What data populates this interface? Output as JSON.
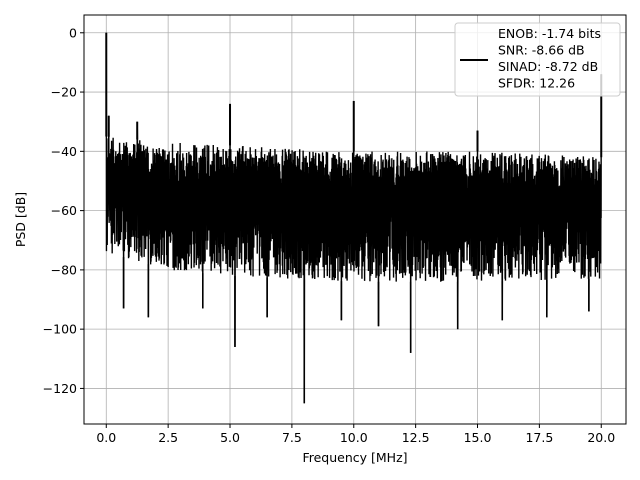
{
  "chart_data": {
    "type": "line",
    "title": "",
    "xlabel": "Frequency [MHz]",
    "ylabel": "PSD [dB]",
    "xlim": [
      -0.9,
      21.0
    ],
    "ylim": [
      -132,
      6
    ],
    "xticks": [
      0.0,
      2.5,
      5.0,
      7.5,
      10.0,
      12.5,
      15.0,
      17.5,
      20.0
    ],
    "xtick_labels": [
      "0.0",
      "2.5",
      "5.0",
      "7.5",
      "10.0",
      "12.5",
      "15.0",
      "17.5",
      "20.0"
    ],
    "yticks": [
      0,
      -20,
      -40,
      -60,
      -80,
      -100,
      -120
    ],
    "ytick_labels": [
      "0",
      "−20",
      "−40",
      "−60",
      "−80",
      "−100",
      "−120"
    ],
    "grid": true,
    "legend_position": "top-right",
    "line_color": "#000000",
    "noise_floor": {
      "x_range": [
        0.0,
        20.0
      ],
      "upper_envelope_db": [
        [
          0.0,
          -35
        ],
        [
          2.5,
          -37
        ],
        [
          5.0,
          -38
        ],
        [
          7.5,
          -39
        ],
        [
          10.0,
          -40
        ],
        [
          12.5,
          -40
        ],
        [
          15.0,
          -40
        ],
        [
          17.5,
          -41
        ],
        [
          20.0,
          -42
        ]
      ],
      "lower_envelope_db": [
        [
          0.0,
          -74
        ],
        [
          2.5,
          -80
        ],
        [
          5.0,
          -82
        ],
        [
          10.0,
          -84
        ],
        [
          15.0,
          -84
        ],
        [
          20.0,
          -83
        ]
      ]
    },
    "peaks": [
      {
        "x": 0.0,
        "y": 0.0
      },
      {
        "x": 0.1,
        "y": -28
      },
      {
        "x": 1.25,
        "y": -30
      },
      {
        "x": 5.0,
        "y": -24
      },
      {
        "x": 10.0,
        "y": -23
      },
      {
        "x": 15.0,
        "y": -33
      },
      {
        "x": 20.0,
        "y": -14
      }
    ],
    "dips": [
      {
        "x": 0.7,
        "y": -93
      },
      {
        "x": 1.7,
        "y": -96
      },
      {
        "x": 3.9,
        "y": -93
      },
      {
        "x": 5.2,
        "y": -106
      },
      {
        "x": 6.5,
        "y": -96
      },
      {
        "x": 8.0,
        "y": -125
      },
      {
        "x": 9.5,
        "y": -97
      },
      {
        "x": 11.0,
        "y": -99
      },
      {
        "x": 12.3,
        "y": -108
      },
      {
        "x": 14.2,
        "y": -100
      },
      {
        "x": 16.0,
        "y": -97
      },
      {
        "x": 17.8,
        "y": -96
      },
      {
        "x": 19.5,
        "y": -94
      }
    ],
    "legend": {
      "entries": [
        "ENOB: -1.74 bits",
        "SNR: -8.66 dB",
        "SINAD: -8.72 dB",
        "SFDR: 12.26"
      ]
    }
  }
}
